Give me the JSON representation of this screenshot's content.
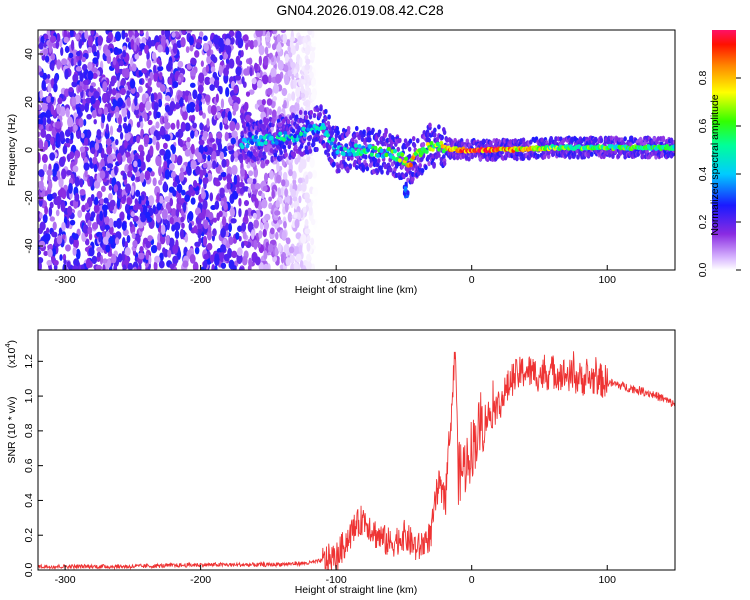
{
  "title": "GN04.2026.019.08.42.C28",
  "chart_data": [
    {
      "type": "heatmap",
      "name": "spectrogram",
      "xlabel": "Height of straight line (km)",
      "ylabel": "Frequency (Hz)",
      "xlim": [
        -320,
        150
      ],
      "ylim": [
        -50,
        50
      ],
      "xticks": [
        -300,
        -200,
        -100,
        0,
        100
      ],
      "yticks": [
        -40,
        -20,
        0,
        20,
        40
      ],
      "colorbar": {
        "label": "Normalized spectral amplitude",
        "range": [
          0.0,
          1.0
        ],
        "ticks": [
          0.0,
          0.2,
          0.4,
          0.6,
          0.8
        ]
      },
      "ridge": [
        {
          "x": -170,
          "f": 3,
          "amp": 0.35
        },
        {
          "x": -150,
          "f": 4,
          "amp": 0.45
        },
        {
          "x": -130,
          "f": 6,
          "amp": 0.4
        },
        {
          "x": -110,
          "f": 10,
          "amp": 0.4
        },
        {
          "x": -100,
          "f": 0,
          "amp": 0.35
        },
        {
          "x": -80,
          "f": 0,
          "amp": 0.45
        },
        {
          "x": -60,
          "f": -1,
          "amp": 0.5
        },
        {
          "x": -45,
          "f": -5,
          "amp": 0.75
        },
        {
          "x": -30,
          "f": 2,
          "amp": 0.6
        },
        {
          "x": -10,
          "f": 0,
          "amp": 0.85
        },
        {
          "x": 20,
          "f": 0,
          "amp": 0.85
        },
        {
          "x": 60,
          "f": 1,
          "amp": 0.6
        },
        {
          "x": 100,
          "f": 1,
          "amp": 0.55
        },
        {
          "x": 150,
          "f": 1,
          "amp": 0.5
        }
      ],
      "noise_region_x": [
        -320,
        -115
      ]
    },
    {
      "type": "line",
      "name": "snr",
      "xlabel": "Height of straight line (km)",
      "ylabel": "SNR (10 * v/v)",
      "yscale_label": "(x10",
      "yscale_exp": "4",
      "xlim": [
        -320,
        150
      ],
      "ylim": [
        0.0,
        1.38
      ],
      "xticks": [
        -300,
        -200,
        -100,
        0,
        100
      ],
      "yticks": [
        0.0,
        0.2,
        0.4,
        0.6,
        0.8,
        1.0,
        1.2
      ],
      "color": "#ee3333",
      "x": [
        -320,
        -250,
        -200,
        -150,
        -120,
        -100,
        -90,
        -80,
        -70,
        -60,
        -50,
        -40,
        -30,
        -25,
        -20,
        -15,
        -12,
        -10,
        -5,
        0,
        5,
        10,
        20,
        30,
        40,
        50,
        60,
        70,
        80,
        90,
        100,
        110,
        120,
        130,
        140,
        150
      ],
      "y": [
        0.02,
        0.02,
        0.03,
        0.03,
        0.04,
        0.07,
        0.2,
        0.3,
        0.2,
        0.15,
        0.2,
        0.12,
        0.2,
        0.5,
        0.4,
        0.9,
        1.3,
        0.55,
        0.6,
        0.7,
        0.8,
        0.87,
        0.95,
        1.1,
        1.15,
        1.12,
        1.14,
        1.12,
        1.1,
        1.1,
        1.08,
        1.06,
        1.04,
        1.02,
        0.99,
        0.95
      ]
    }
  ]
}
